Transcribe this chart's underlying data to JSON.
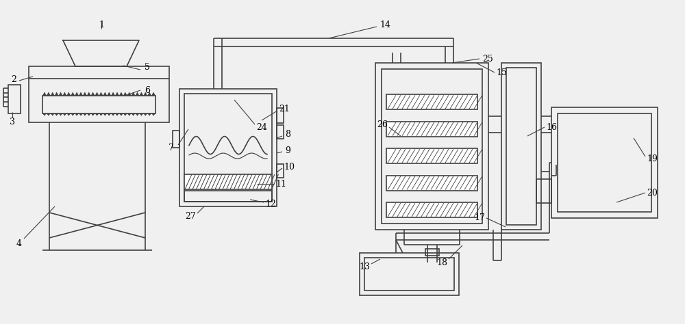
{
  "bg_color": "#f0f0f0",
  "line_color": "#404040",
  "lw": 1.2,
  "fig_width": 10.0,
  "fig_height": 4.74
}
